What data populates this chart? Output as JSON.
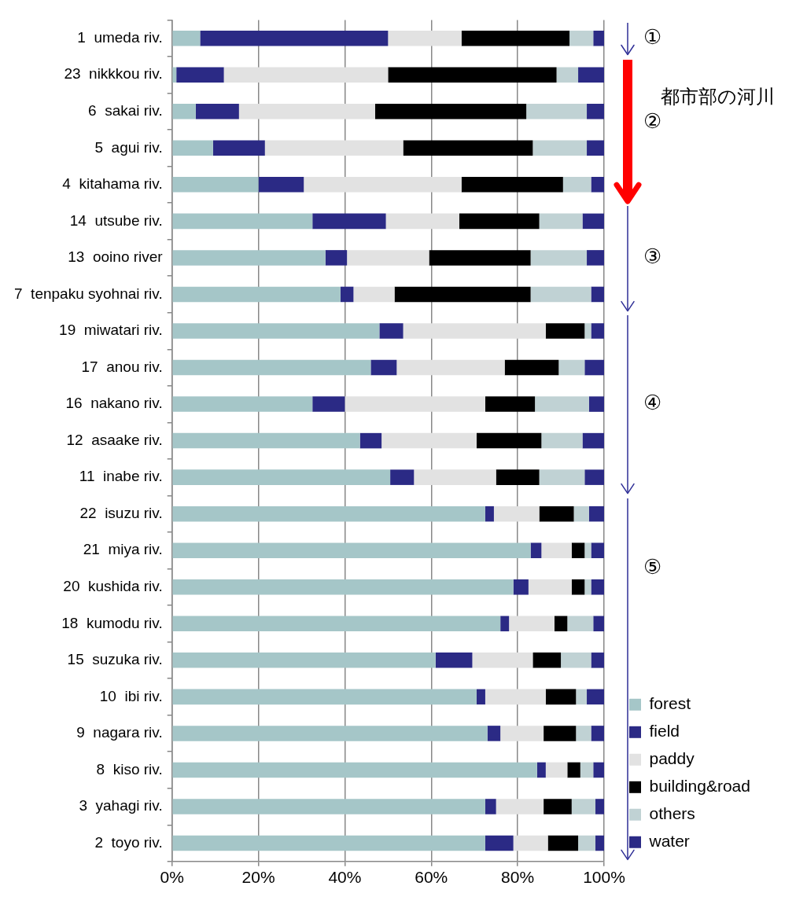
{
  "chart_data": {
    "type": "bar",
    "orientation": "horizontal",
    "stacked": true,
    "categories": [
      "1  umeda riv.",
      "23  nikkkou riv.",
      "6  sakai riv.",
      "5  agui riv.",
      "4  kitahama riv.",
      "14  utsube riv.",
      "13  ooino river",
      "7  tenpaku syohnai riv.",
      "19  miwatari riv.",
      "17  anou riv.",
      "16  nakano riv.",
      "12  asaake riv.",
      "11  inabe riv.",
      "22  isuzu riv.",
      "21  miya riv.",
      "20  kushida riv.",
      "18  kumodu riv.",
      "15  suzuka riv.",
      "10  ibi riv.",
      "9  nagara riv.",
      "8  kiso riv.",
      "3  yahagi riv.",
      "2  toyo riv."
    ],
    "series": [
      {
        "name": "forest",
        "color": "#a5c6c8",
        "values": [
          6.5,
          1,
          5.5,
          9.5,
          20,
          32.5,
          35.5,
          39,
          48,
          46,
          32.5,
          43.5,
          50.5,
          72.5,
          83,
          79,
          76,
          61,
          70.5,
          73,
          84.5,
          72.5,
          72.5
        ]
      },
      {
        "name": "field",
        "color": "#2b2a85",
        "values": [
          43.5,
          11,
          10,
          12,
          10.5,
          17,
          5,
          3,
          5.5,
          6,
          7.5,
          5,
          5.5,
          2,
          2.5,
          3.5,
          2,
          8.5,
          2,
          3,
          2,
          2.5,
          6.5
        ]
      },
      {
        "name": "paddy",
        "color": "#e2e2e2",
        "values": [
          17,
          38,
          31.5,
          32,
          36.5,
          17,
          19,
          9.5,
          33,
          25,
          32.5,
          22,
          19,
          10.5,
          7,
          10,
          10.5,
          14,
          14,
          10,
          5,
          11,
          8
        ]
      },
      {
        "name": "building&road",
        "color": "#000000",
        "values": [
          25,
          39,
          35,
          30,
          23.5,
          18.5,
          23.5,
          31.5,
          9,
          12.5,
          11.5,
          15,
          10,
          8,
          3,
          3,
          3,
          6.5,
          7,
          7.5,
          3,
          6.5,
          7
        ]
      },
      {
        "name": "others",
        "color": "#c0d2d4",
        "values": [
          5.5,
          5,
          14,
          12.5,
          6.5,
          10,
          13,
          14,
          1.5,
          6,
          12.5,
          9.5,
          10.5,
          3.5,
          1.5,
          1.5,
          6,
          7,
          2.5,
          3.5,
          3,
          5.5,
          4
        ]
      },
      {
        "name": "water",
        "color": "#2b2a85",
        "values": [
          2.5,
          6,
          4,
          4,
          3,
          5,
          4,
          3,
          3,
          4.5,
          3.5,
          5,
          4.5,
          3.5,
          3,
          3,
          2.5,
          3,
          4,
          3,
          2.5,
          2,
          2
        ]
      }
    ],
    "xlim": [
      0,
      100
    ],
    "xticks": [
      {
        "value": 0,
        "label": "0%"
      },
      {
        "value": 20,
        "label": "20%"
      },
      {
        "value": 40,
        "label": "40%"
      },
      {
        "value": 60,
        "label": "60%"
      },
      {
        "value": 80,
        "label": "80%"
      },
      {
        "value": 100,
        "label": "100%"
      }
    ],
    "grid": "x",
    "legend": "bottom right",
    "annotations": [
      "①",
      "②",
      "③",
      "④",
      "⑤",
      "都市部の河川"
    ]
  }
}
